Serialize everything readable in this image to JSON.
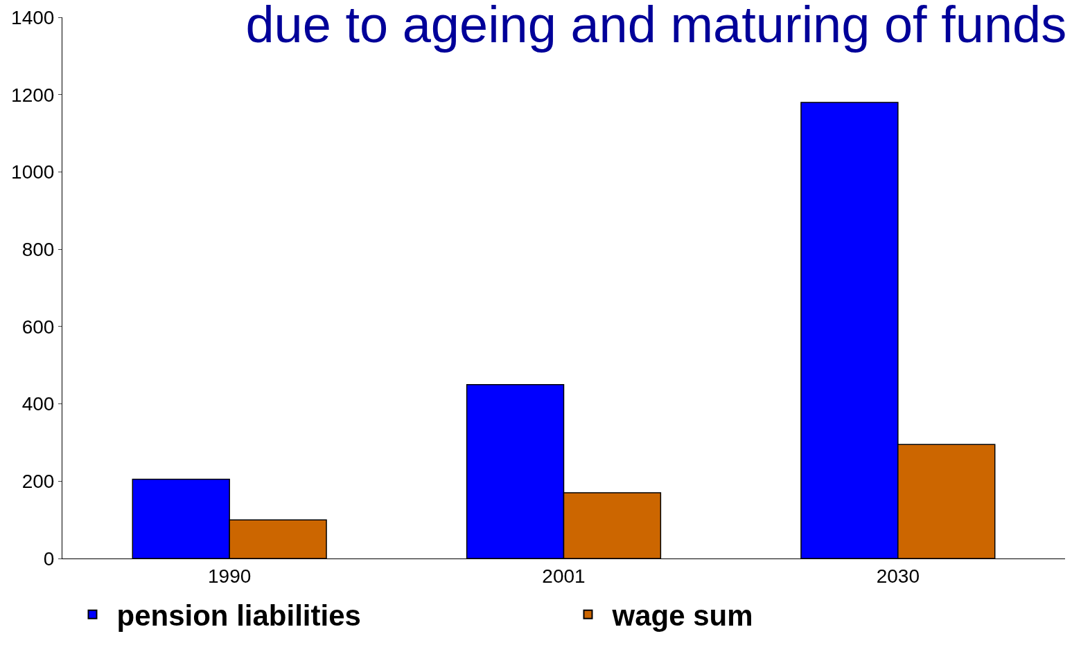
{
  "chart_data": {
    "type": "bar",
    "title": "due to ageing and maturing of funds",
    "categories": [
      "1990",
      "2001",
      "2030"
    ],
    "series": [
      {
        "name": "pension liabilities",
        "color": "#0000ff",
        "values": [
          205,
          450,
          1180
        ]
      },
      {
        "name": "wage sum",
        "color": "#cc6600",
        "values": [
          100,
          170,
          295
        ]
      }
    ],
    "ylim": [
      0,
      1400
    ],
    "yticks": [
      0,
      200,
      400,
      600,
      800,
      1000,
      1200,
      1400
    ],
    "legend": "bottom"
  }
}
